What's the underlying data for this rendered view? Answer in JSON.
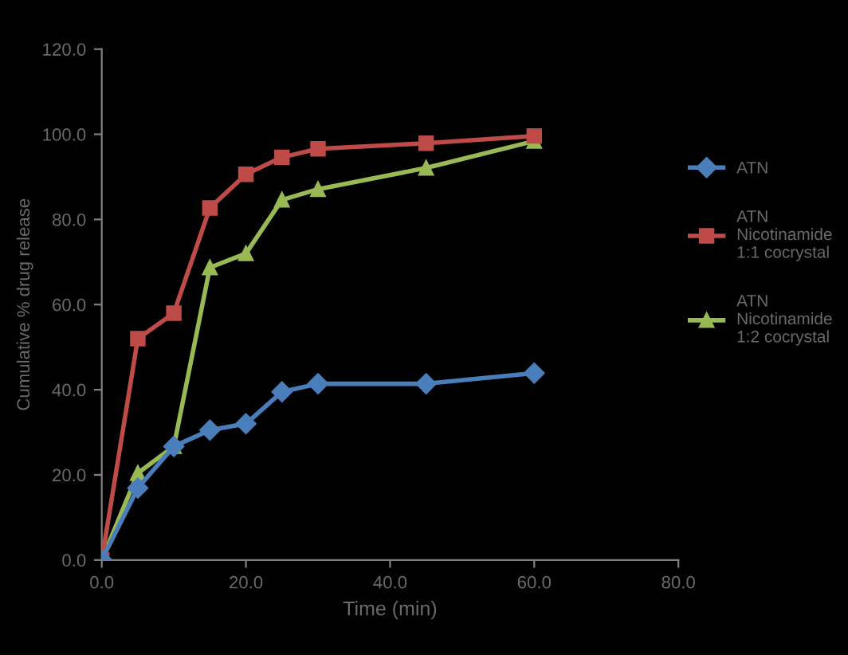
{
  "chart_data": {
    "type": "line",
    "xlabel": "Time (min)",
    "ylabel": "Cumulative % drug release",
    "xlim": [
      0,
      80
    ],
    "xticks": [
      {
        "value": 0,
        "label": "0.0"
      },
      {
        "value": 20,
        "label": "20.0"
      },
      {
        "value": 40,
        "label": "40.0"
      },
      {
        "value": 60,
        "label": "60.0"
      },
      {
        "value": 80,
        "label": "80.0"
      }
    ],
    "ylim": [
      0,
      120
    ],
    "yticks": [
      {
        "value": 0,
        "label": "0.0"
      },
      {
        "value": 20,
        "label": "20.0"
      },
      {
        "value": 40,
        "label": "40.0"
      },
      {
        "value": 60,
        "label": "60.0"
      },
      {
        "value": 80,
        "label": "80.0"
      },
      {
        "value": 100,
        "label": "100.0"
      },
      {
        "value": 120,
        "label": "120.0"
      }
    ],
    "x": [
      0,
      5,
      10,
      15,
      20,
      25,
      30,
      45,
      60
    ],
    "series": [
      {
        "name": "ATN",
        "color": "#4a7ebb",
        "marker": "diamond",
        "values": [
          0,
          16.9,
          26.7,
          30.5,
          32,
          39.5,
          41.4,
          41.4,
          43.9
        ]
      },
      {
        "name": "ATN Nicotinamide 1:1 cocrystal",
        "color": "#be4b48",
        "marker": "square",
        "values": [
          0,
          52,
          58,
          82.7,
          90.6,
          94.6,
          96.6,
          97.9,
          99.6
        ]
      },
      {
        "name": "ATN Nicotinamide 1:2 cocrystal",
        "color": "#98b954",
        "marker": "triangle",
        "values": [
          0,
          20.4,
          26.7,
          68.7,
          72,
          84.6,
          87.1,
          92.1,
          98.4
        ]
      }
    ],
    "grid": false,
    "legend": "right",
    "line_style": "solid"
  }
}
